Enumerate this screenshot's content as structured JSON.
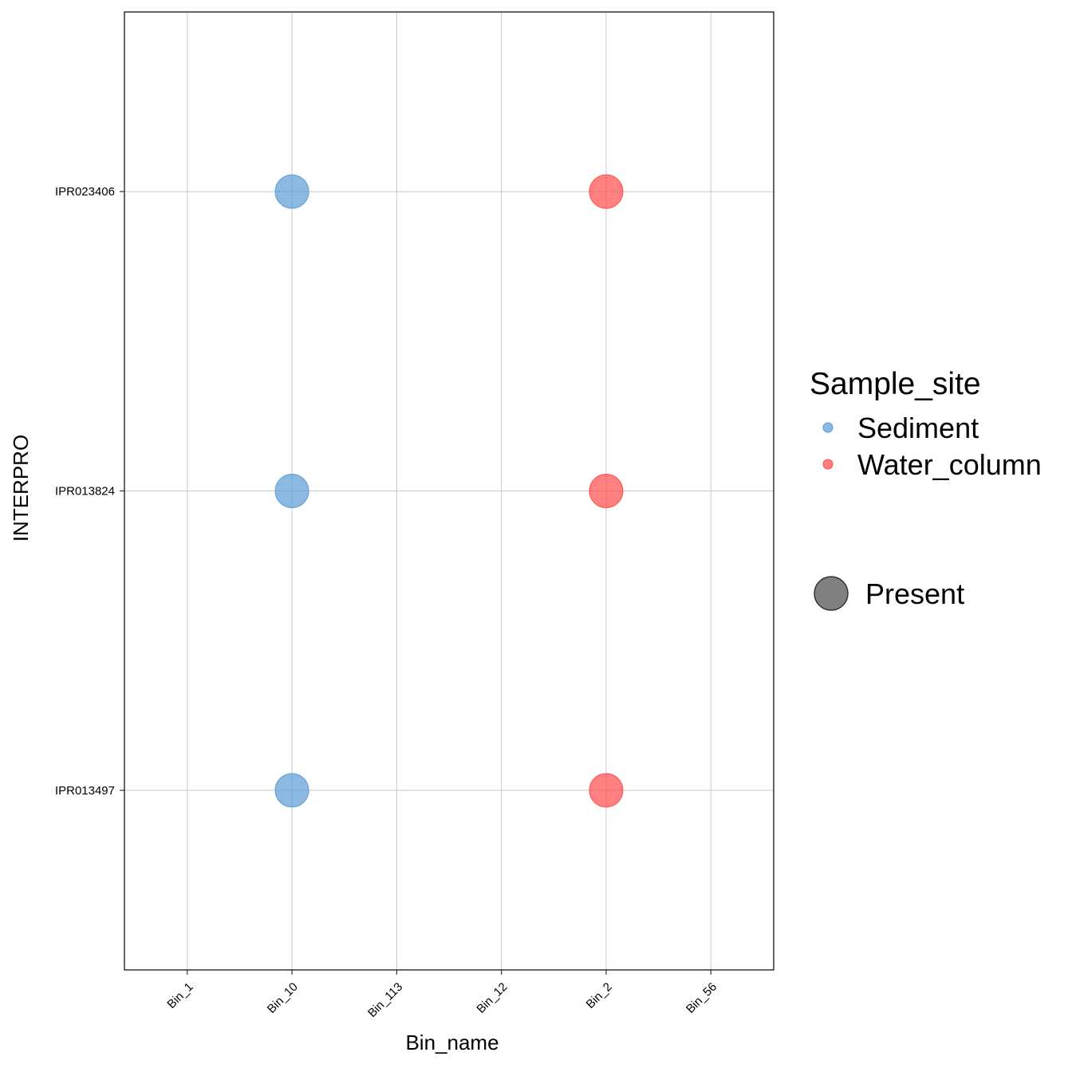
{
  "chart_data": {
    "type": "scatter",
    "xlabel": "Bin_name",
    "ylabel": "INTERPRO",
    "x_categories": [
      "Bin_1",
      "Bin_10",
      "Bin_113",
      "Bin_12",
      "Bin_2",
      "Bin_56"
    ],
    "y_categories": [
      "IPR013497",
      "IPR013824",
      "IPR023406"
    ],
    "grid": true,
    "legend_placement": "right",
    "series": [
      {
        "name": "Sediment",
        "color": "#5b9bd5",
        "points": [
          {
            "x": "Bin_10",
            "y": "IPR023406",
            "size": "Present"
          },
          {
            "x": "Bin_10",
            "y": "IPR013824",
            "size": "Present"
          },
          {
            "x": "Bin_10",
            "y": "IPR013497",
            "size": "Present"
          }
        ]
      },
      {
        "name": "Water_column",
        "color": "#ff4b4b",
        "points": [
          {
            "x": "Bin_2",
            "y": "IPR023406",
            "size": "Present"
          },
          {
            "x": "Bin_2",
            "y": "IPR013824",
            "size": "Present"
          },
          {
            "x": "Bin_2",
            "y": "IPR013497",
            "size": "Present"
          }
        ]
      }
    ],
    "legend": {
      "color_title": "Sample_site",
      "color_entries": [
        {
          "label": "Sediment",
          "color": "#5b9bd5"
        },
        {
          "label": "Water_column",
          "color": "#ff4b4b"
        }
      ],
      "size_entries": [
        {
          "label": "Present",
          "color": "#555555"
        }
      ]
    }
  }
}
